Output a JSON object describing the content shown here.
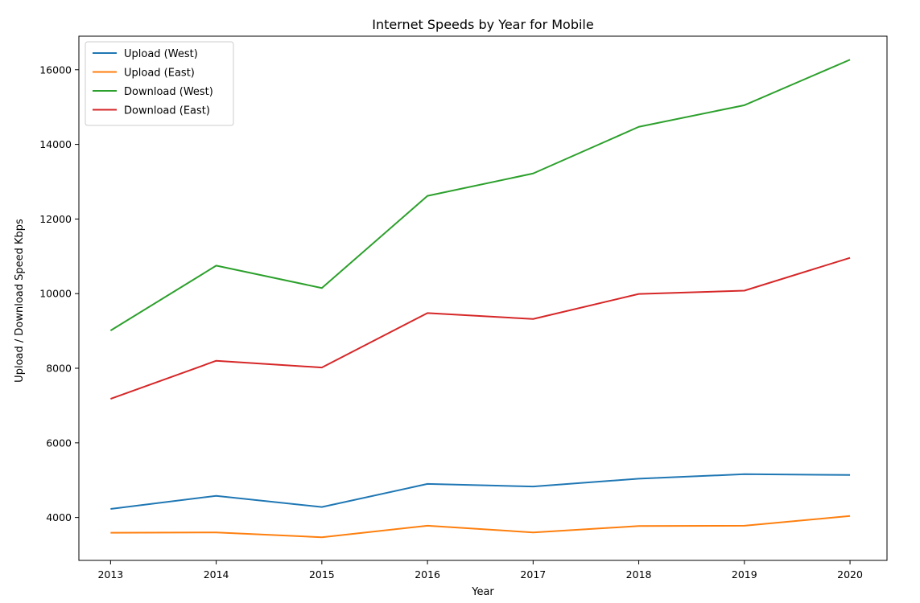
{
  "chart_data": {
    "type": "line",
    "title": "Internet Speeds by Year for Mobile",
    "xlabel": "Year",
    "ylabel": "Upload / Download Speed Kbps",
    "x": [
      2013,
      2014,
      2015,
      2016,
      2017,
      2018,
      2019,
      2020
    ],
    "xlim": [
      2012.7,
      2020.35
    ],
    "ylim": [
      2850,
      16900
    ],
    "yticks": [
      4000,
      6000,
      8000,
      10000,
      12000,
      14000,
      16000
    ],
    "grid": false,
    "legend_position": "top-left",
    "series": [
      {
        "name": "Upload (West)",
        "color": "#1f77b4",
        "values": [
          4230,
          4580,
          4280,
          4900,
          4830,
          5040,
          5160,
          5140
        ]
      },
      {
        "name": "Upload (East)",
        "color": "#ff7f0e",
        "values": [
          3590,
          3600,
          3470,
          3780,
          3600,
          3770,
          3780,
          4040
        ]
      },
      {
        "name": "Download (West)",
        "color": "#2ca02c",
        "values": [
          9010,
          10750,
          10150,
          12620,
          13220,
          14470,
          15050,
          16270
        ]
      },
      {
        "name": "Download (East)",
        "color": "#d62728",
        "values": [
          7180,
          8200,
          8020,
          9480,
          9320,
          9990,
          10080,
          10960
        ]
      }
    ]
  }
}
